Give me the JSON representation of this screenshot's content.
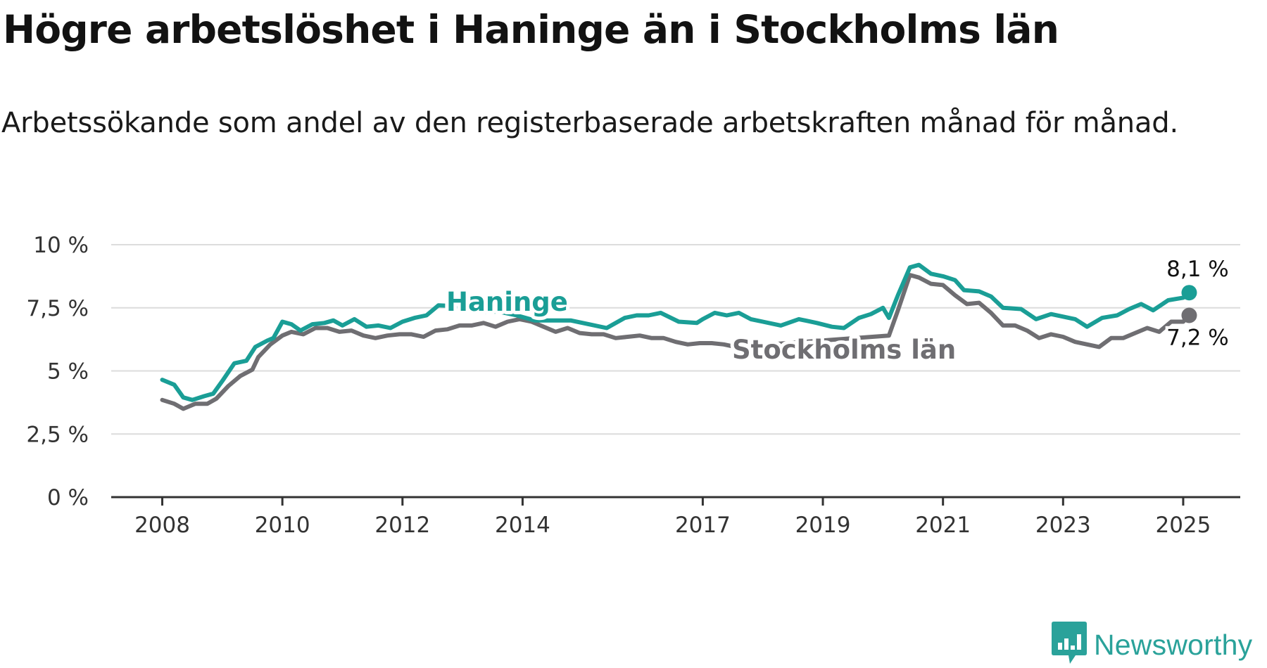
{
  "title": "Högre arbetslöshet i Haninge än i Stockholms län",
  "subtitle": "Arbetssökande som andel av den registerbaserade arbetskraften månad för månad.",
  "brand": {
    "name": "Newsworthy",
    "icon": "newsworthy-logo-icon",
    "color": "#2aa29a"
  },
  "chart_data": {
    "type": "line",
    "x_unit": "year",
    "xlim": [
      2007.15,
      2025.95
    ],
    "ylim": [
      0,
      10
    ],
    "y_ticks": [
      {
        "value": 0,
        "label": "0 %"
      },
      {
        "value": 2.5,
        "label": "2,5 %"
      },
      {
        "value": 5,
        "label": "5 %"
      },
      {
        "value": 7.5,
        "label": "7,5 %"
      },
      {
        "value": 10,
        "label": "10 %"
      }
    ],
    "x_ticks": [
      {
        "value": 2008,
        "label": "2008"
      },
      {
        "value": 2010,
        "label": "2010"
      },
      {
        "value": 2012,
        "label": "2012"
      },
      {
        "value": 2014,
        "label": "2014"
      },
      {
        "value": 2017,
        "label": "2017"
      },
      {
        "value": 2019,
        "label": "2019"
      },
      {
        "value": 2021,
        "label": "2021"
      },
      {
        "value": 2023,
        "label": "2023"
      },
      {
        "value": 2025,
        "label": "2025"
      }
    ],
    "grid": true,
    "legend": "inline labels",
    "series": [
      {
        "name": "Haninge",
        "color": "#1a9e96",
        "end_label": "8,1 %",
        "points": [
          [
            2008.0,
            4.65
          ],
          [
            2008.2,
            4.45
          ],
          [
            2008.35,
            3.95
          ],
          [
            2008.5,
            3.85
          ],
          [
            2008.7,
            4.0
          ],
          [
            2008.85,
            4.1
          ],
          [
            2009.0,
            4.6
          ],
          [
            2009.2,
            5.3
          ],
          [
            2009.4,
            5.4
          ],
          [
            2009.55,
            5.95
          ],
          [
            2009.75,
            6.2
          ],
          [
            2009.85,
            6.3
          ],
          [
            2010.0,
            6.95
          ],
          [
            2010.15,
            6.85
          ],
          [
            2010.3,
            6.6
          ],
          [
            2010.5,
            6.85
          ],
          [
            2010.7,
            6.9
          ],
          [
            2010.85,
            7.0
          ],
          [
            2011.0,
            6.8
          ],
          [
            2011.2,
            7.05
          ],
          [
            2011.4,
            6.75
          ],
          [
            2011.6,
            6.8
          ],
          [
            2011.8,
            6.7
          ],
          [
            2012.0,
            6.95
          ],
          [
            2012.2,
            7.1
          ],
          [
            2012.4,
            7.2
          ],
          [
            2012.6,
            7.6
          ],
          [
            2013.0,
            7.55
          ],
          [
            2013.3,
            7.35
          ],
          [
            2013.6,
            7.35
          ],
          [
            2013.9,
            7.2
          ],
          [
            2014.2,
            7.0
          ],
          [
            2014.5,
            7.0
          ],
          [
            2014.8,
            7.0
          ],
          [
            2015.1,
            6.85
          ],
          [
            2015.4,
            6.7
          ],
          [
            2015.7,
            7.1
          ],
          [
            2015.9,
            7.2
          ],
          [
            2016.1,
            7.2
          ],
          [
            2016.3,
            7.3
          ],
          [
            2016.6,
            6.95
          ],
          [
            2016.9,
            6.9
          ],
          [
            2017.0,
            7.05
          ],
          [
            2017.2,
            7.3
          ],
          [
            2017.4,
            7.2
          ],
          [
            2017.6,
            7.3
          ],
          [
            2017.8,
            7.05
          ],
          [
            2018.0,
            6.95
          ],
          [
            2018.3,
            6.8
          ],
          [
            2018.6,
            7.05
          ],
          [
            2018.9,
            6.9
          ],
          [
            2019.15,
            6.75
          ],
          [
            2019.35,
            6.7
          ],
          [
            2019.6,
            7.1
          ],
          [
            2019.8,
            7.25
          ],
          [
            2020.0,
            7.5
          ],
          [
            2020.1,
            7.1
          ],
          [
            2020.25,
            8.0
          ],
          [
            2020.45,
            9.1
          ],
          [
            2020.6,
            9.2
          ],
          [
            2020.8,
            8.85
          ],
          [
            2021.0,
            8.75
          ],
          [
            2021.2,
            8.6
          ],
          [
            2021.35,
            8.2
          ],
          [
            2021.6,
            8.15
          ],
          [
            2021.8,
            7.95
          ],
          [
            2022.0,
            7.5
          ],
          [
            2022.3,
            7.45
          ],
          [
            2022.55,
            7.05
          ],
          [
            2022.8,
            7.25
          ],
          [
            2023.0,
            7.15
          ],
          [
            2023.2,
            7.05
          ],
          [
            2023.4,
            6.75
          ],
          [
            2023.65,
            7.1
          ],
          [
            2023.9,
            7.2
          ],
          [
            2024.1,
            7.45
          ],
          [
            2024.3,
            7.65
          ],
          [
            2024.5,
            7.4
          ],
          [
            2024.75,
            7.8
          ],
          [
            2025.0,
            7.9
          ],
          [
            2025.1,
            8.1
          ]
        ]
      },
      {
        "name": "Stockholms län",
        "color": "#6f6e72",
        "end_label": "7,2 %",
        "points": [
          [
            2008.0,
            3.85
          ],
          [
            2008.2,
            3.7
          ],
          [
            2008.35,
            3.5
          ],
          [
            2008.55,
            3.7
          ],
          [
            2008.75,
            3.7
          ],
          [
            2008.9,
            3.9
          ],
          [
            2009.1,
            4.4
          ],
          [
            2009.3,
            4.8
          ],
          [
            2009.5,
            5.05
          ],
          [
            2009.6,
            5.55
          ],
          [
            2009.8,
            6.05
          ],
          [
            2010.0,
            6.4
          ],
          [
            2010.15,
            6.55
          ],
          [
            2010.35,
            6.45
          ],
          [
            2010.55,
            6.7
          ],
          [
            2010.75,
            6.7
          ],
          [
            2010.95,
            6.55
          ],
          [
            2011.15,
            6.6
          ],
          [
            2011.35,
            6.4
          ],
          [
            2011.55,
            6.3
          ],
          [
            2011.75,
            6.4
          ],
          [
            2011.95,
            6.45
          ],
          [
            2012.15,
            6.45
          ],
          [
            2012.35,
            6.35
          ],
          [
            2012.55,
            6.6
          ],
          [
            2012.75,
            6.65
          ],
          [
            2012.95,
            6.8
          ],
          [
            2013.15,
            6.8
          ],
          [
            2013.35,
            6.9
          ],
          [
            2013.55,
            6.75
          ],
          [
            2013.75,
            6.95
          ],
          [
            2013.95,
            7.05
          ],
          [
            2014.15,
            6.95
          ],
          [
            2014.35,
            6.75
          ],
          [
            2014.55,
            6.55
          ],
          [
            2014.75,
            6.7
          ],
          [
            2014.95,
            6.5
          ],
          [
            2015.15,
            6.45
          ],
          [
            2015.35,
            6.45
          ],
          [
            2015.55,
            6.3
          ],
          [
            2015.75,
            6.35
          ],
          [
            2015.95,
            6.4
          ],
          [
            2016.15,
            6.3
          ],
          [
            2016.35,
            6.3
          ],
          [
            2016.55,
            6.15
          ],
          [
            2016.75,
            6.05
          ],
          [
            2016.95,
            6.1
          ],
          [
            2017.15,
            6.1
          ],
          [
            2017.35,
            6.05
          ],
          [
            2017.55,
            5.95
          ],
          [
            2020.1,
            6.4
          ],
          [
            2020.25,
            7.4
          ],
          [
            2020.45,
            8.8
          ],
          [
            2020.6,
            8.7
          ],
          [
            2020.8,
            8.45
          ],
          [
            2021.0,
            8.4
          ],
          [
            2021.2,
            8.0
          ],
          [
            2021.4,
            7.65
          ],
          [
            2021.6,
            7.7
          ],
          [
            2021.8,
            7.3
          ],
          [
            2022.0,
            6.8
          ],
          [
            2022.2,
            6.8
          ],
          [
            2022.4,
            6.6
          ],
          [
            2022.6,
            6.3
          ],
          [
            2022.8,
            6.45
          ],
          [
            2023.0,
            6.35
          ],
          [
            2023.2,
            6.15
          ],
          [
            2023.4,
            6.05
          ],
          [
            2023.6,
            5.95
          ],
          [
            2023.8,
            6.3
          ],
          [
            2024.0,
            6.3
          ],
          [
            2024.2,
            6.5
          ],
          [
            2024.4,
            6.7
          ],
          [
            2024.6,
            6.55
          ],
          [
            2024.8,
            6.95
          ],
          [
            2025.0,
            6.95
          ],
          [
            2025.1,
            7.2
          ]
        ]
      }
    ],
    "annotations": [
      {
        "text": "Haninge",
        "series": 0,
        "x": 2013.0,
        "y": 7.55
      },
      {
        "text": "Stockholms län",
        "series": 1,
        "x": 2018.7,
        "y": 5.95
      }
    ]
  }
}
